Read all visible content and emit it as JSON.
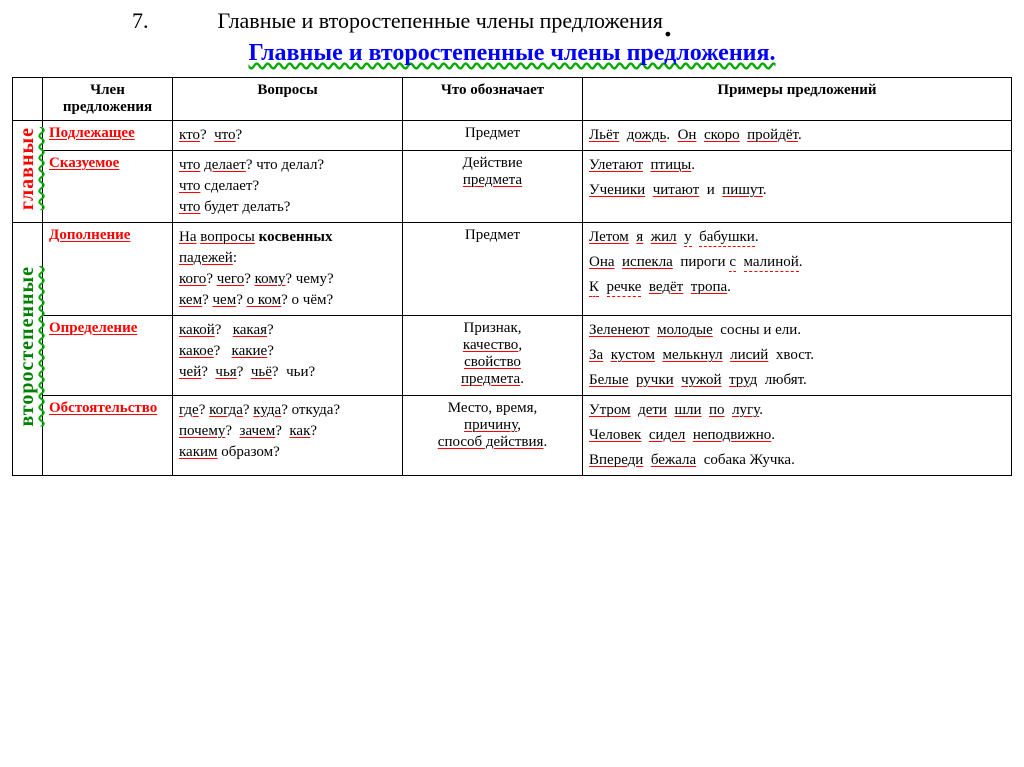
{
  "header": {
    "num": "7.",
    "text": "Главные и второстепенные члены предложения"
  },
  "subtitle": "Главные и второстепенные члены предложения.",
  "columns": {
    "member": "Член предложения",
    "questions": "Вопросы",
    "means": "Что обозначает",
    "examples": "Примеры предложений"
  },
  "groups": {
    "main": "главные",
    "secondary": "второстепенные"
  },
  "rows": {
    "subj": {
      "name": "Подлежащее",
      "q1": "кто",
      "q2": "что",
      "means": "Предмет",
      "ex1a": "Льёт",
      "ex1b": "дождь",
      "ex1c": "Он",
      "ex1d": "скоро",
      "ex1e": "пройдёт"
    },
    "pred": {
      "name": "Сказуемое",
      "q1": "что",
      "q1b": "делает",
      "q2": "что делал?",
      "q3": "что",
      "q3b": "сделает?",
      "q4": "что",
      "q4b": "будет делать?",
      "means1": "Действие",
      "means2": "предмета",
      "ex1a": "Улетают",
      "ex1b": "птицы",
      "ex2a": "Ученики",
      "ex2b": "читают",
      "ex2c": "и",
      "ex2d": "пишут"
    },
    "obj": {
      "name": "Дополнение",
      "q1": "На",
      "q1b": "вопросы",
      "q1c": "косвенных",
      "q2": "падежей",
      "q3": "кого",
      "q3b": "чего",
      "q3c": "кому",
      "q3d": "чему?",
      "q4": "кем",
      "q4b": "чем",
      "q4c": "о ком",
      "q4d": "о чём?",
      "means": "Предмет",
      "ex1a": "Летом",
      "ex1b": "я",
      "ex1c": "жил",
      "ex1d": "у",
      "ex1e": "бабушки",
      "ex2a": "Она",
      "ex2b": "испекла",
      "ex2c": "пироги ",
      "ex2d": "с",
      "ex2e": "малиной",
      "ex3a": "К",
      "ex3b": "речке",
      "ex3c": "ведёт",
      "ex3d": "тропа"
    },
    "attr": {
      "name": "Определение",
      "q1": "какой",
      "q1b": "какая",
      "q2": "какое",
      "q2b": "какие",
      "q3": "чей",
      "q3b": "чья",
      "q3c": "чьё",
      "q3d": "чьи?",
      "means1": "Признак,",
      "means2": "качество",
      "means3": "свойство",
      "means4": "предмета",
      "ex1a": "Зеленеют",
      "ex1b": "молодые",
      "ex1c": "сосны и ели.",
      "ex2a": "За",
      "ex2b": "кустом",
      "ex2c": "мелькнул",
      "ex2d": "лисий",
      "ex2e": "хвост.",
      "ex3a": "Белые",
      "ex3b": "ручки",
      "ex3c": "чужой",
      "ex3d": "труд",
      "ex3e": "любят."
    },
    "adv": {
      "name": "Обстоятельство",
      "q1": "где",
      "q1b": "когда",
      "q1c": "куда",
      "q1d": "откуда?",
      "q2": "почему",
      "q2b": "зачем",
      "q2c": "как",
      "q3": "каким",
      "q3b": "образом?",
      "means1": "Место, время,",
      "means2": "причину",
      "means3": "способ действия",
      "ex1a": "Утром",
      "ex1b": "дети",
      "ex1c": "шли",
      "ex1d": "по",
      "ex1e": "лугу",
      "ex2a": "Человек",
      "ex2b": "сидел",
      "ex2c": "неподвижно",
      "ex3a": "Впереди",
      "ex3b": "бежала",
      "ex3c": "собака Жучка."
    }
  }
}
